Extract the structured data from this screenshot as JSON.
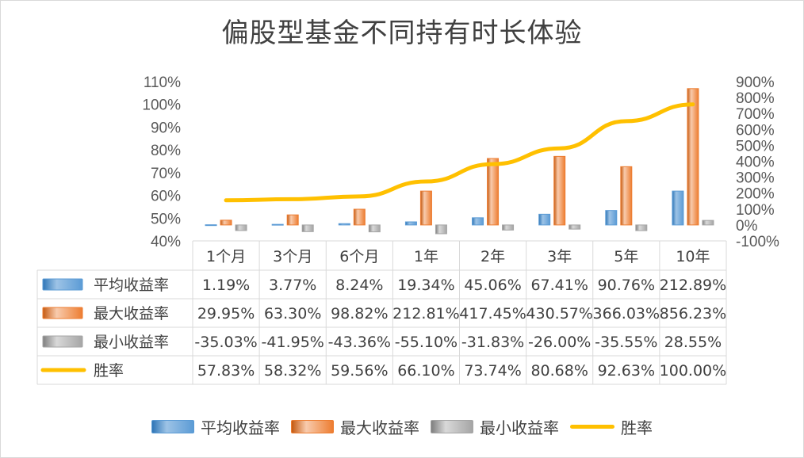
{
  "chart_data": {
    "type": "bar",
    "title": "偏股型基金不同持有时长体验",
    "categories": [
      "1个月",
      "3个月",
      "6个月",
      "1年",
      "2年",
      "3年",
      "5年",
      "10年"
    ],
    "left_axis": {
      "ylim": [
        0.4,
        1.1
      ],
      "ticks": [
        "110%",
        "100%",
        "90%",
        "80%",
        "70%",
        "60%",
        "50%",
        "40%"
      ]
    },
    "right_axis": {
      "ylim": [
        -100,
        900
      ],
      "ticks": [
        "900%",
        "800%",
        "700%",
        "600%",
        "500%",
        "400%",
        "300%",
        "200%",
        "100%",
        "0%",
        "-100%"
      ]
    },
    "series": [
      {
        "name": "平均收益率",
        "type": "bar",
        "axis": "right",
        "color": "#5b9bd5",
        "values": [
          1.19,
          3.77,
          8.24,
          19.34,
          45.06,
          67.41,
          90.76,
          212.89
        ],
        "labels": [
          "1.19%",
          "3.77%",
          "8.24%",
          "19.34%",
          "45.06%",
          "67.41%",
          "90.76%",
          "212.89%"
        ]
      },
      {
        "name": "最大收益率",
        "type": "bar",
        "axis": "right",
        "color": "#ed7d31",
        "values": [
          29.95,
          63.3,
          98.82,
          212.81,
          417.45,
          430.57,
          366.03,
          856.23
        ],
        "labels": [
          "29.95%",
          "63.30%",
          "98.82%",
          "212.81%",
          "417.45%",
          "430.57%",
          "366.03%",
          "856.23%"
        ]
      },
      {
        "name": "最小收益率",
        "type": "bar",
        "axis": "right",
        "color": "#a5a5a5",
        "values": [
          -35.03,
          -41.95,
          -43.36,
          -55.1,
          -31.83,
          -26.0,
          -35.55,
          28.55
        ],
        "labels": [
          "-35.03%",
          "-41.95%",
          "-43.36%",
          "-55.10%",
          "-31.83%",
          "-26.00%",
          "-35.55%",
          "28.55%"
        ]
      },
      {
        "name": "胜率",
        "type": "line",
        "axis": "left",
        "color": "#ffc000",
        "values": [
          57.83,
          58.32,
          59.56,
          66.1,
          73.74,
          80.68,
          92.63,
          100.0
        ],
        "labels": [
          "57.83%",
          "58.32%",
          "59.56%",
          "66.10%",
          "73.74%",
          "80.68%",
          "92.63%",
          "100.00%"
        ]
      }
    ],
    "legend_position": "bottom",
    "data_table": true
  }
}
